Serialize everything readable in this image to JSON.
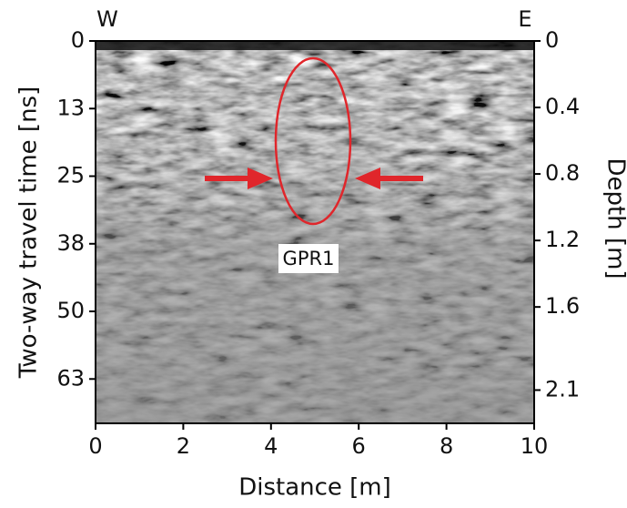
{
  "chart_data": {
    "type": "radargram",
    "xlabel": "Distance [m]",
    "ylabel": "Two-way travel time [ns]",
    "y2label": "Depth [m]",
    "annotations": {
      "west": "W",
      "east": "E",
      "target": "GPR1"
    },
    "xlim": [
      0,
      10
    ],
    "xticks": [
      0,
      2,
      4,
      6,
      8,
      10
    ],
    "ylim": [
      0,
      70.7
    ],
    "yticks": [
      0,
      {
        "value": 12.5,
        "label": "13"
      },
      25,
      {
        "value": 37.5,
        "label": "38"
      },
      50,
      {
        "value": 62.5,
        "label": "63"
      }
    ],
    "y2lim": [
      0,
      2.3
    ],
    "y2ticks": [
      0,
      0.4,
      0.8,
      1.2,
      1.6,
      2.1
    ],
    "y_inverted": true
  }
}
